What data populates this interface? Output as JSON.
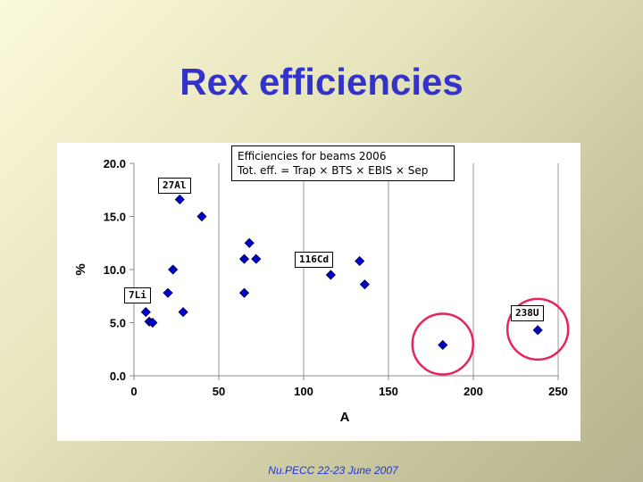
{
  "slide": {
    "title": "Rex efficiencies",
    "footer": "Nu.PECC 22-23 June 2007"
  },
  "info_box": {
    "line1": "Efficiencies for beams 2006",
    "line2": "Tot. eff. = Trap × BTS × EBIS × Sep"
  },
  "callouts": [
    {
      "label": "27Al"
    },
    {
      "label": "116Cd"
    },
    {
      "label": "7Li"
    },
    {
      "label": "238U"
    }
  ],
  "chart_data": {
    "type": "scatter",
    "xlabel": "A",
    "ylabel": "%",
    "xlim": [
      0,
      250
    ],
    "ylim": [
      0,
      20
    ],
    "xticks": [
      "0",
      "50",
      "100",
      "150",
      "200",
      "250"
    ],
    "yticks": [
      "0.0",
      "5.0",
      "10.0",
      "15.0",
      "20.0"
    ],
    "grid": "vertical",
    "marker_color": "#0000cc",
    "highlight_color": "#e8245a",
    "points": [
      {
        "x": 7,
        "y": 6.0
      },
      {
        "x": 9,
        "y": 5.1
      },
      {
        "x": 11,
        "y": 5.0
      },
      {
        "x": 20,
        "y": 7.8
      },
      {
        "x": 23,
        "y": 10.0
      },
      {
        "x": 27,
        "y": 16.6
      },
      {
        "x": 29,
        "y": 6.0
      },
      {
        "x": 40,
        "y": 15.0
      },
      {
        "x": 65,
        "y": 7.8
      },
      {
        "x": 65,
        "y": 11.0
      },
      {
        "x": 68,
        "y": 12.5
      },
      {
        "x": 72,
        "y": 11.0
      },
      {
        "x": 116,
        "y": 9.5
      },
      {
        "x": 133,
        "y": 10.8
      },
      {
        "x": 136,
        "y": 8.6
      },
      {
        "x": 182,
        "y": 2.9
      },
      {
        "x": 238,
        "y": 4.3
      }
    ],
    "highlighted_x": [
      182,
      238
    ]
  }
}
